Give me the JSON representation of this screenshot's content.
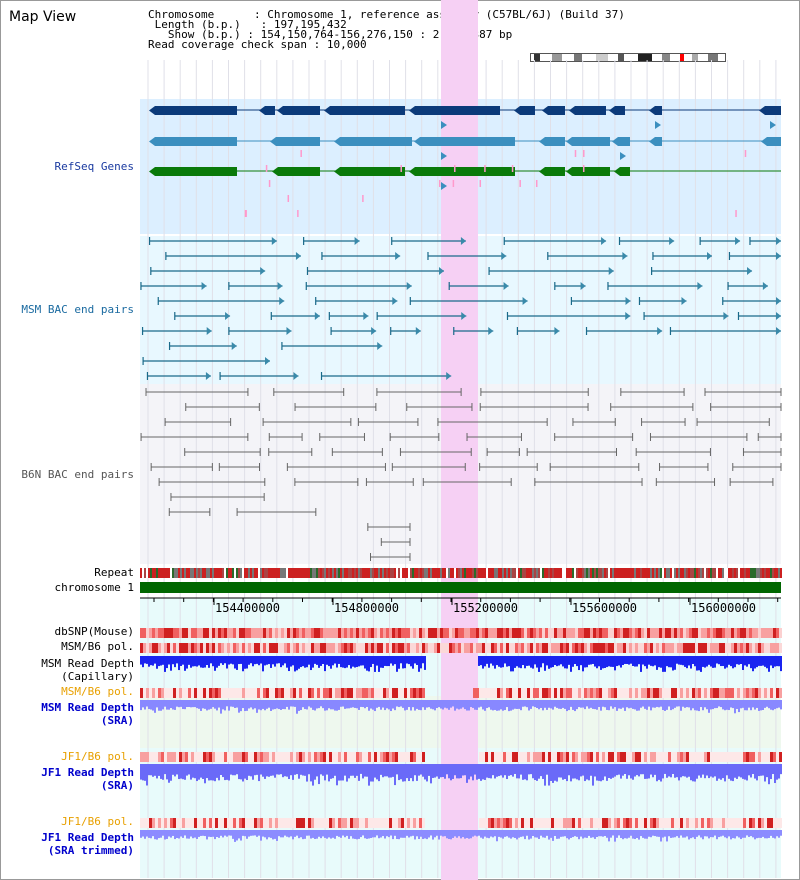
{
  "page": {
    "title": "Map View",
    "info": {
      "chromosome_label": "Chromosome",
      "chromosome_value": "Chromosome 1, reference assembly (C57BL/6J) (Build 37)",
      "length_label": "Length (b.p.)",
      "length_value": "197,195,432",
      "show_label": "Show (b.p.)",
      "show_value": "154,150,764-156,276,150 : 2,125,387 bp",
      "coverage_label": "Read coverage check span",
      "coverage_value": "10,000"
    }
  },
  "tracks": {
    "refseq": {
      "label": "RefSeq Genes",
      "color": "#0000aa"
    },
    "msm_bac": {
      "label": "MSM BAC end pairs",
      "color": "#1a5a8a"
    },
    "b6n_bac": {
      "label": "B6N BAC end pairs",
      "color": "#555555"
    },
    "repeat": {
      "label": "Repeat"
    },
    "chromosome": {
      "label": "chromosome 1",
      "color": "#006600"
    },
    "dbsnp": {
      "label": "dbSNP(Mouse)"
    },
    "msm_b6_pol": {
      "label": "MSM/B6 pol."
    },
    "msm_depth_cap": {
      "label1": "MSM Read Depth",
      "label2": "(Capillary)"
    },
    "msm_b6_pol2": {
      "label": "MSM/B6 pol.",
      "color": "#e8a000"
    },
    "msm_depth_sra": {
      "label1": "MSM Read Depth",
      "label2": "(SRA)",
      "color": "#0000cc"
    },
    "jf1_b6_pol": {
      "label": "JF1/B6 pol.",
      "color": "#e8a000"
    },
    "jf1_depth_sra": {
      "label1": "JF1 Read Depth",
      "label2": "(SRA)",
      "color": "#0000cc"
    },
    "jf1_b6_pol2": {
      "label": "JF1/B6 pol.",
      "color": "#e8a000"
    },
    "jf1_depth_trim": {
      "label1": "JF1 Read Depth",
      "label2": "(SRA trimmed)",
      "color": "#0000cc"
    }
  },
  "axis": {
    "ticks": [
      "154400000",
      "154800000",
      "155200000",
      "155600000",
      "156000000"
    ]
  },
  "colors": {
    "highlight": "#f6d0f4",
    "refseq_bg": "#dcefff",
    "msm_bg": "#e8f8ff",
    "b6n_bg": "#f4f4f8",
    "gene_dark": "#0b3a7a",
    "gene_mid": "#3b8fbf",
    "gene_green": "#0a7a0a",
    "pol_red": "#e03030",
    "depth_blue": "#2030ff",
    "depth_light": "#8080ff"
  }
}
